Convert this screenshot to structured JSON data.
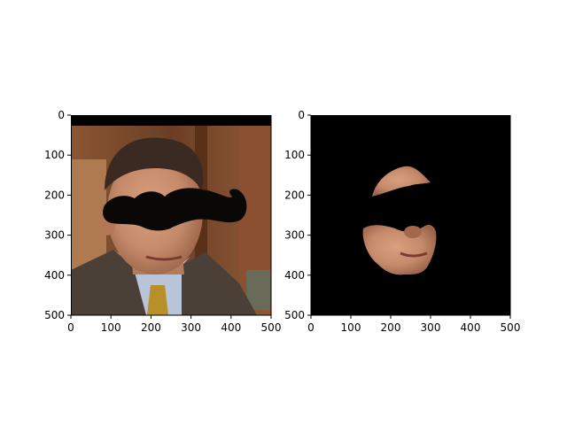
{
  "chart_data": [
    {
      "type": "image",
      "panel": "left",
      "content": "photo of a man in a suit with a black mustache mask covering the eye region",
      "xlim": [
        0,
        500
      ],
      "ylim": [
        500,
        0
      ],
      "xticks": [
        0,
        100,
        200,
        300,
        400,
        500
      ],
      "yticks": [
        0,
        100,
        200,
        300,
        400,
        500
      ],
      "xticklabels": [
        "0",
        "100",
        "200",
        "300",
        "400",
        "500"
      ],
      "yticklabels": [
        "0",
        "100",
        "200",
        "300",
        "400",
        "500"
      ]
    },
    {
      "type": "image",
      "panel": "right",
      "content": "segmented skin region of the face on black background with mustache mask removed",
      "xlim": [
        0,
        500
      ],
      "ylim": [
        500,
        0
      ],
      "xticks": [
        0,
        100,
        200,
        300,
        400,
        500
      ],
      "yticks": [
        0,
        100,
        200,
        300,
        400,
        500
      ],
      "xticklabels": [
        "0",
        "100",
        "200",
        "300",
        "400",
        "500"
      ],
      "yticklabels": [
        "0",
        "100",
        "200",
        "300",
        "400",
        "500"
      ]
    }
  ],
  "colors": {
    "axes": "#000000",
    "background": "#ffffff",
    "mask_black": "#0a0707",
    "skin": "#c48a6a",
    "hair": "#3a2a22",
    "suit": "#4a4038",
    "shirt": "#b8c4d8",
    "tie": "#b8902a",
    "room_wood": "#7a4a2e"
  }
}
